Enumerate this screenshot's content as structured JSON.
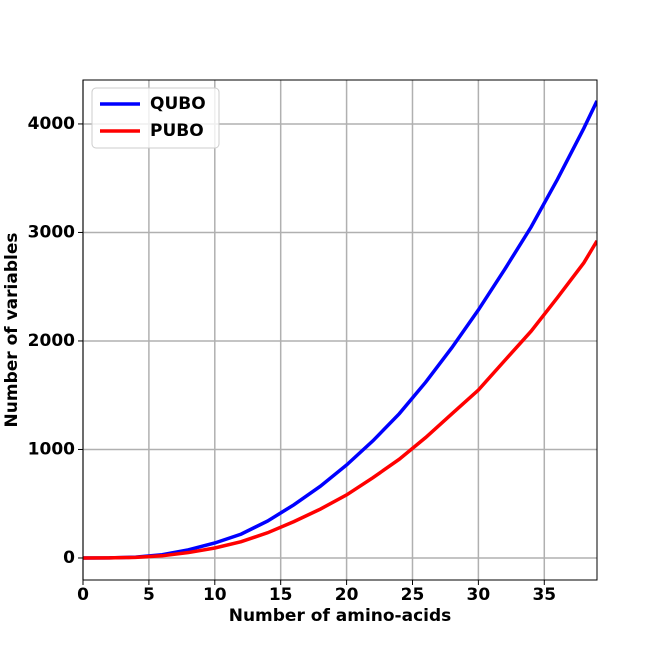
{
  "chart_data": {
    "type": "line",
    "xlabel": "Number of amino-acids",
    "ylabel": "Number of variables",
    "x": [
      0,
      2,
      4,
      6,
      8,
      10,
      12,
      14,
      16,
      18,
      20,
      22,
      24,
      26,
      28,
      30,
      32,
      34,
      36,
      38,
      39
    ],
    "series": [
      {
        "name": "QUBO",
        "color": "#0000ff",
        "values": [
          0,
          1,
          8,
          30,
          75,
          138,
          220,
          340,
          490,
          660,
          857,
          1080,
          1330,
          1620,
          1940,
          2286,
          2660,
          3050,
          3490,
          3960,
          4212
        ]
      },
      {
        "name": "PUBO",
        "color": "#ff0000",
        "values": [
          0,
          1,
          5,
          20,
          50,
          92,
          150,
          232,
          335,
          450,
          581,
          740,
          910,
          1110,
          1330,
          1548,
          1820,
          2090,
          2400,
          2720,
          2922
        ]
      }
    ],
    "xlim": [
      0,
      39
    ],
    "xticks": [
      0,
      5,
      10,
      15,
      20,
      25,
      30,
      35
    ],
    "ylim": [
      -203,
      4405
    ],
    "yticks": [
      0,
      1000,
      2000,
      3000,
      4000
    ],
    "grid": true,
    "legend": "upper-left"
  }
}
